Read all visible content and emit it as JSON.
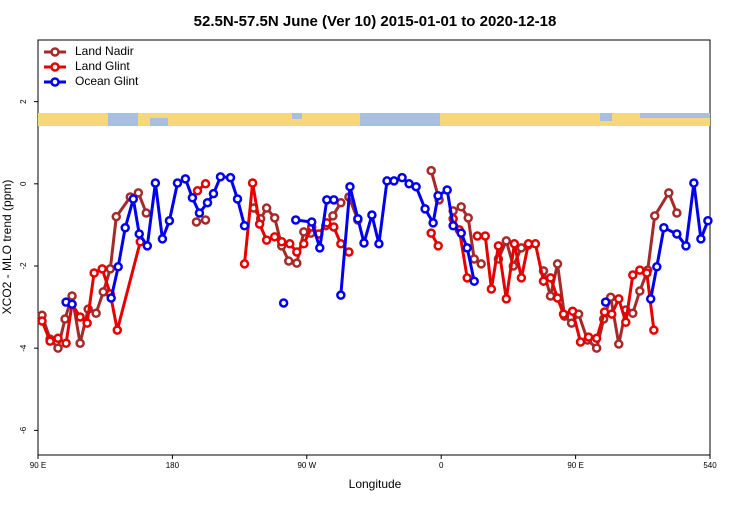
{
  "chart_data": {
    "type": "line",
    "title": "52.5N-57.5N June (Ver 10)   2015-01-01 to 2020-12-18",
    "x_label": "Longitude",
    "y_label": "XCO2 - MLO trend (ppm)",
    "xlim": [
      90,
      540
    ],
    "xticks": [
      {
        "value": 90,
        "label": "90 E"
      },
      180,
      {
        "value": 270,
        "label": "90 W"
      },
      {
        "value": 360,
        "label": "0"
      },
      {
        "value": 450,
        "label": "90 E"
      },
      540
    ],
    "ylim": [
      -6.6,
      3.5
    ],
    "yticks": [
      -6,
      -4,
      -2,
      0,
      2
    ],
    "legend": "top-left",
    "series": [
      {
        "name": "Land Nadir",
        "color": "#a52a2a",
        "x": [
          92.7,
          98.1,
          103.4,
          108.1,
          112.8,
          118.2,
          123.6,
          128.9,
          133.7,
          138.4,
          142.4,
          151.8,
          157.2,
          162.5,
          null,
          196.1,
          202.2,
          null,
          234.4,
          239.1,
          243.1,
          248.5,
          253.2,
          257.9,
          263.3,
          268.0,
          272.7,
          null,
          282.7,
          287.5,
          292.8,
          null,
          298.2,
          304.2,
          null,
          353.3,
          358.6,
          null,
          368.0,
          373.4,
          378.1,
          382.1,
          386.8,
          null,
          398.3,
          403.6,
          408.3,
          413.7,
          418.4,
          null,
          428.5,
          433.2,
          437.9,
          442.6,
          447.3,
          452.0,
          458.0,
          464.1,
          468.8,
          473.5,
          478.9,
          483.6,
          488.3,
          493.0,
          498.3,
          503.0,
          512.4,
          517.8
        ],
        "values": [
          -3.2,
          -3.78,
          -4.0,
          -3.29,
          -2.73,
          -3.88,
          -3.05,
          -3.15,
          -2.63,
          -2.07,
          -0.8,
          -0.32,
          -0.22,
          -0.71,
          null,
          -0.93,
          -0.88,
          null,
          -0.59,
          -0.85,
          -0.59,
          -0.83,
          -1.51,
          -1.88,
          -1.93,
          -1.17,
          -1.2,
          null,
          -1.02,
          -0.78,
          -0.46,
          null,
          -0.32,
          -0.88,
          null,
          0.32,
          -0.39,
          null,
          -0.66,
          -0.56,
          -0.83,
          -1.83,
          -1.95,
          null,
          -1.83,
          -1.39,
          -2.0,
          -1.56,
          -1.49,
          null,
          -2.12,
          -2.73,
          -1.95,
          -3.22,
          -3.39,
          -3.17,
          -3.8,
          -4.0,
          -3.29,
          -2.76,
          -3.9,
          -3.07,
          -3.15,
          -2.61,
          -2.1,
          -0.78,
          -0.22,
          -0.71
        ]
      },
      {
        "name": "Land Glint",
        "color": "#e60000",
        "x": [
          92.7,
          98.1,
          103.4,
          108.8,
          112.8,
          118.2,
          122.9,
          127.6,
          133.0,
          138.4,
          143.1,
          158.5,
          null,
          196.8,
          202.2,
          null,
          228.3,
          233.7,
          238.4,
          243.1,
          248.5,
          253.2,
          258.6,
          263.3,
          268.0,
          273.3,
          278.0,
          283.4,
          288.1,
          292.8,
          298.2,
          null,
          353.3,
          358.0,
          null,
          368.0,
          372.1,
          377.4,
          null,
          384.2,
          389.5,
          393.6,
          398.3,
          403.6,
          409.0,
          413.7,
          418.4,
          423.1,
          428.5,
          433.2,
          437.9,
          441.9,
          448.0,
          453.3,
          458.7,
          464.1,
          469.4,
          474.2,
          478.9,
          483.6,
          488.3,
          493.0,
          497.7,
          502.4
        ],
        "values": [
          -3.34,
          -3.83,
          -3.76,
          -3.88,
          -2.93,
          -3.24,
          -3.39,
          -2.17,
          -2.07,
          -2.68,
          -3.56,
          -1.41,
          null,
          -0.17,
          0.0,
          null,
          -1.95,
          0.02,
          -0.98,
          -1.37,
          -1.29,
          -1.41,
          -1.46,
          -1.66,
          -1.46,
          -1.05,
          -1.22,
          -0.95,
          -1.05,
          -1.46,
          -1.66,
          null,
          -1.2,
          -1.51,
          null,
          -0.85,
          -1.12,
          -2.29,
          null,
          -1.27,
          -1.27,
          -2.56,
          -1.51,
          -2.8,
          -1.46,
          -2.29,
          -1.46,
          -1.46,
          -2.37,
          -2.29,
          -2.78,
          -3.17,
          -3.1,
          -3.85,
          -3.73,
          -3.76,
          -3.12,
          -3.17,
          -2.8,
          -3.37,
          -2.22,
          -2.1,
          -2.17,
          -3.56
        ]
      },
      {
        "name": "Ocean Glint",
        "color": "#0000ee",
        "x": [
          108.8,
          112.8,
          null,
          139.0,
          143.7,
          148.4,
          153.8,
          157.8,
          163.2,
          168.6,
          173.3,
          178.0,
          183.4,
          188.7,
          193.4,
          198.1,
          203.5,
          207.5,
          212.2,
          218.9,
          223.6,
          228.3,
          null,
          254.5,
          null,
          262.6,
          273.3,
          278.7,
          283.4,
          288.1,
          null,
          292.8,
          298.9,
          304.2,
          308.3,
          313.6,
          318.3,
          323.7,
          328.4,
          333.8,
          338.5,
          343.2,
          349.2,
          354.6,
          357.9,
          364.0,
          368.0,
          373.4,
          377.4,
          382.1,
          null,
          470.1,
          null,
          500.3,
          504.4,
          509.1,
          517.8,
          523.9,
          529.2,
          533.9,
          538.6
        ],
        "values": [
          -2.88,
          -2.93,
          null,
          -2.78,
          -2.02,
          -1.07,
          -0.37,
          -1.22,
          -1.51,
          0.02,
          -1.34,
          -0.9,
          0.02,
          0.12,
          -0.34,
          -0.71,
          -0.46,
          -0.24,
          0.17,
          0.15,
          -0.37,
          -1.02,
          null,
          -2.9,
          null,
          -0.88,
          -0.93,
          -1.56,
          -0.39,
          -0.39,
          null,
          -2.71,
          -0.07,
          -0.85,
          -1.44,
          -0.76,
          -1.46,
          0.07,
          0.07,
          0.15,
          0.0,
          -0.07,
          -0.61,
          -0.95,
          -0.29,
          -0.15,
          -1.02,
          -1.2,
          -1.56,
          -2.37,
          null,
          -2.88,
          null,
          -2.8,
          -2.02,
          -1.07,
          -1.22,
          -1.51,
          0.02,
          -1.34,
          -0.9
        ]
      }
    ]
  }
}
